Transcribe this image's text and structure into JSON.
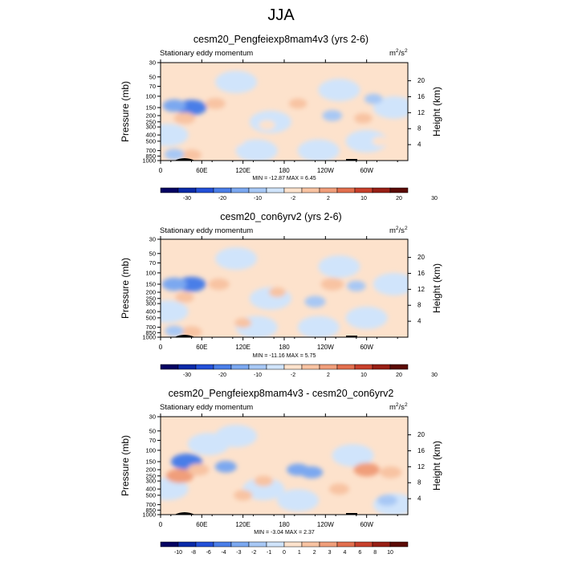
{
  "figure_title": "JJA",
  "colors": {
    "palette_abs": [
      "#040262",
      "#0a2aa8",
      "#2350d8",
      "#4a7ee8",
      "#7ba8f0",
      "#a7c8f5",
      "#d0e4fb",
      "#fde2cc",
      "#f8c3a2",
      "#f09e7a",
      "#e26f4e",
      "#c8402c",
      "#981f15",
      "#5b0a05"
    ],
    "palette_diff": [
      "#040262",
      "#0a2aa8",
      "#2350d8",
      "#4a7ee8",
      "#7ba8f0",
      "#a7c8f5",
      "#d0e4fb",
      "#fde2cc",
      "#f8c3a2",
      "#f09e7a",
      "#e26f4e",
      "#c8402c",
      "#981f15",
      "#5b0a05"
    ],
    "topography": "#000000"
  },
  "chart_data": [
    {
      "type": "heatmap",
      "title": "cesm20_Pengfeiexp8mam4v3 (yrs 2-6)",
      "subtitle": "Stationary eddy momentum",
      "units": "m2/s2",
      "units_base": "m",
      "units_exp1": "2",
      "units_mid": "/s",
      "units_exp2": "2",
      "ylabel": "Pressure (mb)",
      "ylabel_right": "Height (km)",
      "x_ticks": [
        "0",
        "60E",
        "120E",
        "180",
        "120W",
        "60W"
      ],
      "y_ticks": [
        "30",
        "50",
        "70",
        "100",
        "150",
        "200",
        "250",
        "300",
        "400",
        "500",
        "700",
        "850",
        "1000"
      ],
      "y_ticks_right": [
        "20",
        "16",
        "12",
        "8",
        "4"
      ],
      "min_max_text": "MIN = -12.87  MAX =   6.45",
      "min": -12.87,
      "max": 6.45,
      "colorbar_labels": [
        "-30",
        "-20",
        "-10",
        "-2",
        "2",
        "10",
        "20",
        "30"
      ],
      "features": [
        {
          "lon": 45,
          "p": 150,
          "value": -10
        },
        {
          "lon": 35,
          "p": 220,
          "value": 5
        },
        {
          "lon": 80,
          "p": 130,
          "value": 4
        },
        {
          "lon": 20,
          "p": 140,
          "value": -6
        },
        {
          "lon": 45,
          "p": 820,
          "value": 4
        },
        {
          "lon": 200,
          "p": 130,
          "value": 3
        },
        {
          "lon": 250,
          "p": 200,
          "value": -4
        },
        {
          "lon": 295,
          "p": 220,
          "value": 3
        },
        {
          "lon": 155,
          "p": 280,
          "value": 2
        },
        {
          "lon": 310,
          "p": 110,
          "value": -3
        },
        {
          "lon": 110,
          "p": 500,
          "value": 2
        },
        {
          "lon": 320,
          "p": 500,
          "value": 2
        },
        {
          "lon": 20,
          "p": 800,
          "value": -4
        }
      ]
    },
    {
      "type": "heatmap",
      "title": "cesm20_con6yrv2 (yrs 2-6)",
      "subtitle": "Stationary eddy momentum",
      "units": "m2/s2",
      "units_base": "m",
      "units_exp1": "2",
      "units_mid": "/s",
      "units_exp2": "2",
      "ylabel": "Pressure (mb)",
      "ylabel_right": "Height (km)",
      "x_ticks": [
        "0",
        "60E",
        "120E",
        "180",
        "120W",
        "60W"
      ],
      "y_ticks": [
        "30",
        "50",
        "70",
        "100",
        "150",
        "200",
        "250",
        "300",
        "400",
        "500",
        "700",
        "850",
        "1000"
      ],
      "y_ticks_right": [
        "20",
        "16",
        "12",
        "8",
        "4"
      ],
      "min_max_text": "MIN = -11.16  MAX =   5.75",
      "min": -11.16,
      "max": 5.75,
      "colorbar_labels": [
        "-30",
        "-20",
        "-10",
        "-2",
        "2",
        "10",
        "20",
        "30"
      ],
      "features": [
        {
          "lon": 45,
          "p": 150,
          "value": -8
        },
        {
          "lon": 20,
          "p": 150,
          "value": -6
        },
        {
          "lon": 85,
          "p": 150,
          "value": 4
        },
        {
          "lon": 35,
          "p": 240,
          "value": 3
        },
        {
          "lon": 250,
          "p": 150,
          "value": 5
        },
        {
          "lon": 225,
          "p": 280,
          "value": -4
        },
        {
          "lon": 285,
          "p": 160,
          "value": -3
        },
        {
          "lon": 170,
          "p": 200,
          "value": 2
        },
        {
          "lon": 45,
          "p": 830,
          "value": 4
        },
        {
          "lon": 120,
          "p": 600,
          "value": 2
        },
        {
          "lon": 20,
          "p": 800,
          "value": -3
        }
      ]
    },
    {
      "type": "heatmap",
      "title": "cesm20_Pengfeiexp8mam4v3 - cesm20_con6yrv2",
      "subtitle": "Stationary eddy momentum",
      "units": "m2/s2",
      "units_base": "m",
      "units_exp1": "2",
      "units_mid": "/s",
      "units_exp2": "2",
      "ylabel": "Pressure (mb)",
      "ylabel_right": "Height (km)",
      "x_ticks": [
        "0",
        "60E",
        "120E",
        "180",
        "120W",
        "60W"
      ],
      "y_ticks": [
        "30",
        "50",
        "70",
        "100",
        "150",
        "200",
        "250",
        "300",
        "400",
        "500",
        "700",
        "850",
        "1000"
      ],
      "y_ticks_right": [
        "20",
        "16",
        "12",
        "8",
        "4"
      ],
      "min_max_text": "MIN =  -3.04  MAX =   2.37",
      "min": -3.04,
      "max": 2.37,
      "colorbar_labels": [
        "-10",
        "-8",
        "-6",
        "-4",
        "-3",
        "-2",
        "-1",
        "0",
        "1",
        "2",
        "3",
        "4",
        "6",
        "8",
        "10"
      ],
      "features": [
        {
          "lon": 38,
          "p": 150,
          "value": -2.5
        },
        {
          "lon": 28,
          "p": 250,
          "value": 2
        },
        {
          "lon": 55,
          "p": 200,
          "value": 1.2
        },
        {
          "lon": 95,
          "p": 180,
          "value": -1.2
        },
        {
          "lon": 200,
          "p": 200,
          "value": -1.3
        },
        {
          "lon": 220,
          "p": 220,
          "value": -1.3
        },
        {
          "lon": 300,
          "p": 200,
          "value": 1.8
        },
        {
          "lon": 335,
          "p": 220,
          "value": 1.2
        },
        {
          "lon": 260,
          "p": 400,
          "value": 1
        },
        {
          "lon": 150,
          "p": 300,
          "value": 0.8
        },
        {
          "lon": 120,
          "p": 500,
          "value": 0.8
        },
        {
          "lon": 330,
          "p": 600,
          "value": -1
        }
      ]
    }
  ]
}
